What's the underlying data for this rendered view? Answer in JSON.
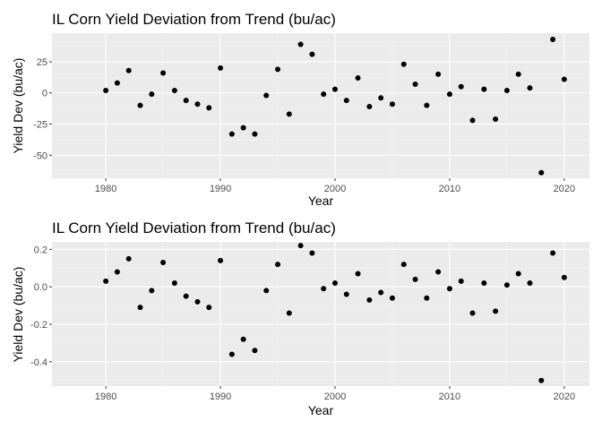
{
  "chart_data": [
    {
      "type": "scatter",
      "title": "IL Corn Yield Deviation from Trend (bu/ac)",
      "xlabel": "Year",
      "ylabel": "Yield Dev (bu/ac)",
      "xlim": [
        1975.3,
        2022.2
      ],
      "ylim": [
        -68.5,
        48.0
      ],
      "xticks": [
        1980,
        1990,
        2000,
        2010,
        2020
      ],
      "xtick_labels": [
        "1980",
        "1990",
        "2000",
        "2010",
        "2020"
      ],
      "yticks": [
        -50,
        -25,
        0,
        25
      ],
      "ytick_labels": [
        "-50",
        "-25",
        "0",
        "25"
      ],
      "grid": true,
      "background": "#ebebeb",
      "point_color": "#000000",
      "x": [
        1980,
        1981,
        1982,
        1983,
        1984,
        1985,
        1986,
        1987,
        1988,
        1989,
        1990,
        1991,
        1992,
        1993,
        1994,
        1995,
        1996,
        1997,
        1998,
        1999,
        2000,
        2001,
        2002,
        2003,
        2004,
        2005,
        2006,
        2007,
        2008,
        2009,
        2010,
        2011,
        2012,
        2013,
        2014,
        2015,
        2016,
        2017,
        2018,
        2019,
        2020
      ],
      "y": [
        2,
        8,
        18,
        -10,
        -1,
        16,
        2,
        -6,
        -9,
        -12,
        20,
        -33,
        -28,
        -33,
        -2,
        19,
        -17,
        39,
        31,
        -1,
        3,
        -6,
        12,
        -11,
        -4,
        -9,
        23,
        7,
        -10,
        15,
        -1,
        5,
        -22,
        3,
        -21,
        2,
        15,
        4,
        -64,
        43,
        11
      ]
    },
    {
      "type": "scatter",
      "title": "IL Corn Yield Deviation from Trend (bu/ac)",
      "xlabel": "Year",
      "ylabel": "Yield Dev (bu/ac)",
      "xlim": [
        1975.3,
        2022.2
      ],
      "ylim": [
        -0.53,
        0.24
      ],
      "xticks": [
        1980,
        1990,
        2000,
        2010,
        2020
      ],
      "xtick_labels": [
        "1980",
        "1990",
        "2000",
        "2010",
        "2020"
      ],
      "yticks": [
        -0.4,
        -0.2,
        0.0,
        0.2
      ],
      "ytick_labels": [
        "-0.4",
        "-0.2",
        "0.0",
        "0.2"
      ],
      "grid": true,
      "background": "#ebebeb",
      "point_color": "#000000",
      "x": [
        1980,
        1981,
        1982,
        1983,
        1984,
        1985,
        1986,
        1987,
        1988,
        1989,
        1990,
        1991,
        1992,
        1993,
        1994,
        1995,
        1996,
        1997,
        1998,
        1999,
        2000,
        2001,
        2002,
        2003,
        2004,
        2005,
        2006,
        2007,
        2008,
        2009,
        2010,
        2011,
        2012,
        2013,
        2014,
        2015,
        2016,
        2017,
        2018,
        2019,
        2020
      ],
      "y": [
        0.03,
        0.08,
        0.15,
        -0.11,
        -0.02,
        0.13,
        0.02,
        -0.05,
        -0.08,
        -0.11,
        0.14,
        -0.36,
        -0.28,
        -0.34,
        -0.02,
        0.12,
        -0.14,
        0.22,
        0.18,
        -0.01,
        0.02,
        -0.04,
        0.07,
        -0.07,
        -0.03,
        -0.06,
        0.12,
        0.04,
        -0.06,
        0.08,
        -0.01,
        0.03,
        -0.14,
        0.02,
        -0.13,
        0.01,
        0.07,
        0.02,
        -0.5,
        0.18,
        0.05
      ]
    }
  ]
}
